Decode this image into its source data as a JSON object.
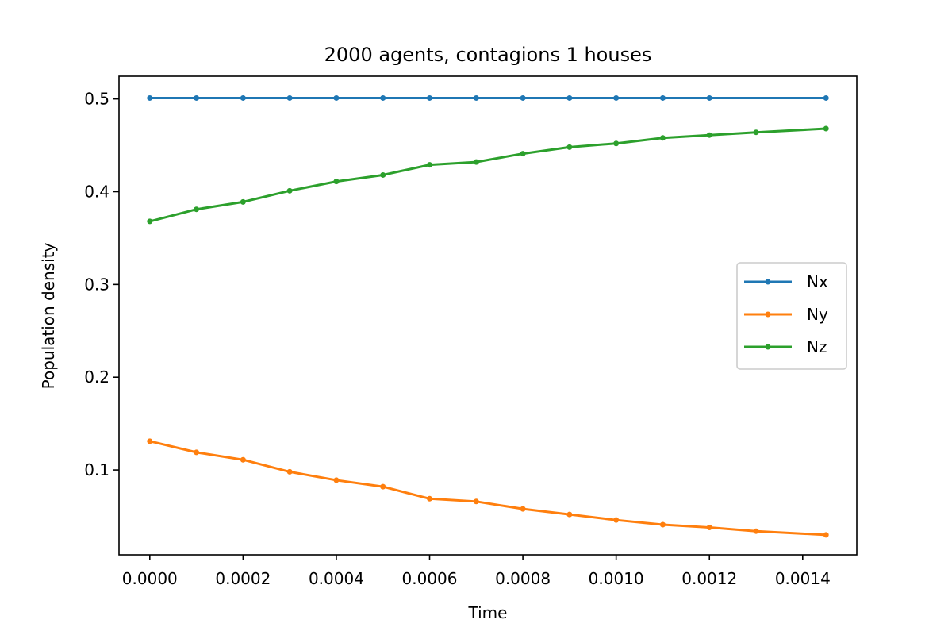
{
  "chart_data": {
    "type": "line",
    "title": "2000 agents, contagions 1 houses",
    "xlabel": "Time",
    "ylabel": "Population density",
    "xlim": [
      -6.6e-05,
      0.001516
    ],
    "ylim": [
      0.0085,
      0.5245
    ],
    "xticks": [
      0.0,
      0.0002,
      0.0004,
      0.0006,
      0.0008,
      0.001,
      0.0012,
      0.0014
    ],
    "xtick_labels": [
      "0.0000",
      "0.0002",
      "0.0004",
      "0.0006",
      "0.0008",
      "0.0010",
      "0.0012",
      "0.0014"
    ],
    "yticks": [
      0.1,
      0.2,
      0.3,
      0.4,
      0.5
    ],
    "ytick_labels": [
      "0.1",
      "0.2",
      "0.3",
      "0.4",
      "0.5"
    ],
    "legend_position": "center-right",
    "markers": "point",
    "series": [
      {
        "name": "Nx",
        "color": "#1f77b4",
        "x": [
          0.0,
          0.0001,
          0.0002,
          0.0003,
          0.0004,
          0.0005,
          0.0006,
          0.0007,
          0.0008,
          0.0009,
          0.001,
          0.0011,
          0.0012,
          0.00145
        ],
        "y": [
          0.501,
          0.501,
          0.501,
          0.501,
          0.501,
          0.501,
          0.501,
          0.501,
          0.501,
          0.501,
          0.501,
          0.501,
          0.501,
          0.501
        ]
      },
      {
        "name": "Ny",
        "color": "#ff7f0e",
        "x": [
          0.0,
          0.0001,
          0.0002,
          0.0003,
          0.0004,
          0.0005,
          0.0006,
          0.0007,
          0.0008,
          0.0009,
          0.001,
          0.0011,
          0.0012,
          0.0013,
          0.00145
        ],
        "y": [
          0.131,
          0.119,
          0.111,
          0.098,
          0.089,
          0.082,
          0.069,
          0.066,
          0.058,
          0.052,
          0.046,
          0.041,
          0.038,
          0.034,
          0.03
        ]
      },
      {
        "name": "Nz",
        "color": "#2ca02c",
        "x": [
          0.0,
          0.0001,
          0.0002,
          0.0003,
          0.0004,
          0.0005,
          0.0006,
          0.0007,
          0.0008,
          0.0009,
          0.001,
          0.0011,
          0.0012,
          0.0013,
          0.00145
        ],
        "y": [
          0.368,
          0.381,
          0.389,
          0.401,
          0.411,
          0.418,
          0.429,
          0.432,
          0.441,
          0.448,
          0.452,
          0.458,
          0.461,
          0.464,
          0.468
        ]
      }
    ]
  }
}
